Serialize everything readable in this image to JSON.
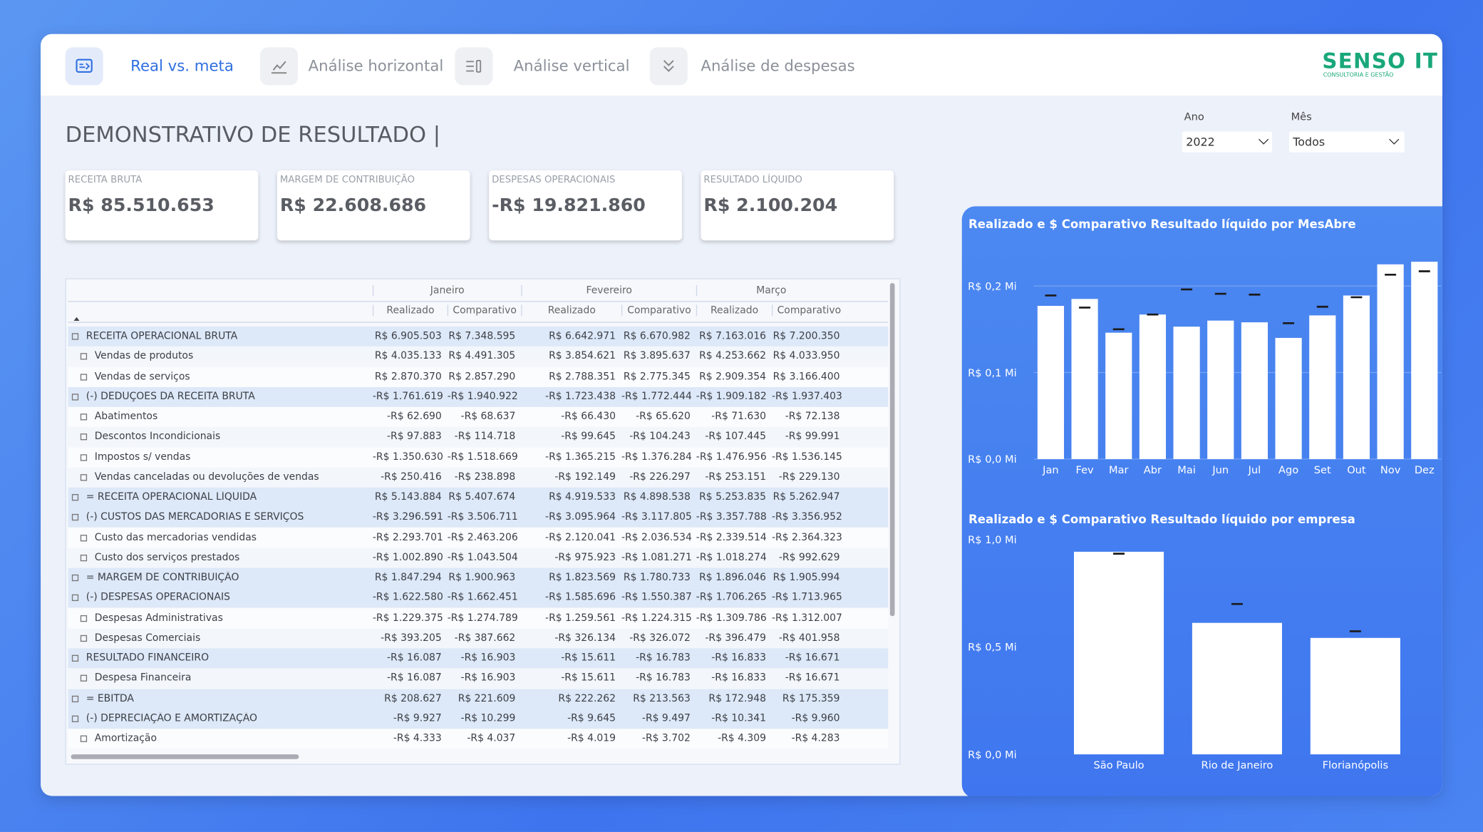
{
  "nav": {
    "tabs": [
      "Real vs. meta",
      "Análise horizontal",
      "Análise vertical",
      "Análise de despesas"
    ]
  },
  "logo": {
    "name": "SENSO IT",
    "tagline": "CONSULTORIA E GESTÃO"
  },
  "title": "DEMONSTRATIVO DE RESULTADO |",
  "filters": [
    {
      "label": "Ano",
      "value": "2022"
    },
    {
      "label": "Mês",
      "value": "Todos"
    }
  ],
  "kpis": [
    {
      "label": "RECEITA BRUTA",
      "value": "R$ 85.510.653"
    },
    {
      "label": "MARGEM DE CONTRIBUIÇÃO",
      "value": "R$ 22.608.686"
    },
    {
      "label": "DESPESAS OPERACIONAIS",
      "value": "-R$ 19.821.860"
    },
    {
      "label": "RESULTADO LÍQUIDO",
      "value": "R$ 2.100.204"
    }
  ],
  "table": {
    "months": [
      "Janeiro",
      "Fevereiro",
      "Março"
    ],
    "columns": [
      "Realizado",
      "Comparativo"
    ],
    "rows": [
      {
        "label": "RECEITA OPERACIONAL BRUTA",
        "values": [
          "R$ 6.905.503",
          "R$ 7.348.595",
          "R$ 6.642.971",
          "R$ 6.670.982",
          "R$ 7.163.016",
          "R$ 7.200.350"
        ]
      },
      {
        "label": "Vendas de produtos",
        "values": [
          "R$ 4.035.133",
          "R$ 4.491.305",
          "R$ 3.854.621",
          "R$ 3.895.637",
          "R$ 4.253.662",
          "R$ 4.033.950"
        ]
      },
      {
        "label": "Vendas de serviços",
        "values": [
          "R$ 2.870.370",
          "R$ 2.857.290",
          "R$ 2.788.351",
          "R$ 2.775.345",
          "R$ 2.909.354",
          "R$ 3.166.400"
        ]
      },
      {
        "label": "(-) DEDUÇÕES DA RECEITA BRUTA",
        "values": [
          "-R$ 1.761.619",
          "-R$ 1.940.922",
          "-R$ 1.723.438",
          "-R$ 1.772.444",
          "-R$ 1.909.182",
          "-R$ 1.937.403"
        ]
      },
      {
        "label": "Abatimentos",
        "values": [
          "-R$ 62.690",
          "-R$ 68.637",
          "-R$ 66.430",
          "-R$ 65.620",
          "-R$ 71.630",
          "-R$ 72.138"
        ]
      },
      {
        "label": "Descontos Incondicionais",
        "values": [
          "-R$ 97.883",
          "-R$ 114.718",
          "-R$ 99.645",
          "-R$ 104.243",
          "-R$ 107.445",
          "-R$ 99.991"
        ]
      },
      {
        "label": "Impostos s/ vendas",
        "values": [
          "-R$ 1.350.630",
          "-R$ 1.518.669",
          "-R$ 1.365.215",
          "-R$ 1.376.284",
          "-R$ 1.476.956",
          "-R$ 1.536.145"
        ]
      },
      {
        "label": "Vendas canceladas ou devoluções de vendas",
        "values": [
          "-R$ 250.416",
          "-R$ 238.898",
          "-R$ 192.149",
          "-R$ 226.297",
          "-R$ 253.151",
          "-R$ 229.130"
        ]
      },
      {
        "label": "= RECEITA OPERACIONAL LÍQUIDA",
        "values": [
          "R$ 5.143.884",
          "R$ 5.407.674",
          "R$ 4.919.533",
          "R$ 4.898.538",
          "R$ 5.253.835",
          "R$ 5.262.947"
        ]
      },
      {
        "label": "(-) CUSTOS DAS MERCADORIAS E SERVIÇOS",
        "values": [
          "-R$ 3.296.591",
          "-R$ 3.506.711",
          "-R$ 3.095.964",
          "-R$ 3.117.805",
          "-R$ 3.357.788",
          "-R$ 3.356.952"
        ]
      },
      {
        "label": "Custo das mercadorias vendidas",
        "values": [
          "-R$ 2.293.701",
          "-R$ 2.463.206",
          "-R$ 2.120.041",
          "-R$ 2.036.534",
          "-R$ 2.339.514",
          "-R$ 2.364.323"
        ]
      },
      {
        "label": "Custo dos serviços prestados",
        "values": [
          "-R$ 1.002.890",
          "-R$ 1.043.504",
          "-R$ 975.923",
          "-R$ 1.081.271",
          "-R$ 1.018.274",
          "-R$ 992.629"
        ]
      },
      {
        "label": "= MARGEM DE CONTRIBUIÇÃO",
        "values": [
          "R$ 1.847.294",
          "R$ 1.900.963",
          "R$ 1.823.569",
          "R$ 1.780.733",
          "R$ 1.896.046",
          "R$ 1.905.994"
        ]
      },
      {
        "label": "(-) DESPESAS OPERACIONAIS",
        "values": [
          "-R$ 1.622.580",
          "-R$ 1.662.451",
          "-R$ 1.585.696",
          "-R$ 1.550.387",
          "-R$ 1.706.265",
          "-R$ 1.713.965"
        ]
      },
      {
        "label": "Despesas Administrativas",
        "values": [
          "-R$ 1.229.375",
          "-R$ 1.274.789",
          "-R$ 1.259.561",
          "-R$ 1.224.315",
          "-R$ 1.309.786",
          "-R$ 1.312.007"
        ]
      },
      {
        "label": "Despesas Comerciais",
        "values": [
          "-R$ 393.205",
          "-R$ 387.662",
          "-R$ 326.134",
          "-R$ 326.072",
          "-R$ 396.479",
          "-R$ 401.958"
        ]
      },
      {
        "label": "RESULTADO FINANCEIRO",
        "values": [
          "-R$ 16.087",
          "-R$ 16.903",
          "-R$ 15.611",
          "-R$ 16.783",
          "-R$ 16.833",
          "-R$ 16.671"
        ]
      },
      {
        "label": "Despesa Financeira",
        "values": [
          "-R$ 16.087",
          "-R$ 16.903",
          "-R$ 15.611",
          "-R$ 16.783",
          "-R$ 16.833",
          "-R$ 16.671"
        ]
      },
      {
        "label": "= EBITDA",
        "values": [
          "R$ 208.627",
          "R$ 221.609",
          "R$ 222.262",
          "R$ 213.563",
          "R$ 172.948",
          "R$ 175.359"
        ]
      },
      {
        "label": "(-) DEPRECIAÇÃO E AMORTIZAÇÃO",
        "values": [
          "-R$ 9.927",
          "-R$ 10.299",
          "-R$ 9.645",
          "-R$ 9.497",
          "-R$ 10.341",
          "-R$ 9.960"
        ]
      },
      {
        "label": "Amortização",
        "values": [
          "-R$ 4.333",
          "-R$ 4.037",
          "-R$ 4.019",
          "-R$ 3.702",
          "-R$ 4.309",
          "-R$ 4.283"
        ]
      }
    ]
  },
  "charts": [
    {
      "type": "bar",
      "title": "Realizado e $ Comparativo Resultado líquido por MesAbre",
      "categories": [
        "Jan",
        "Fev",
        "Mar",
        "Abr",
        "Mai",
        "Jun",
        "Jul",
        "Ago",
        "Set",
        "Out",
        "Nov",
        "Dez"
      ],
      "values": [
        0.177,
        0.185,
        0.146,
        0.167,
        0.153,
        0.16,
        0.158,
        0.14,
        0.166,
        0.189,
        0.225,
        0.228
      ],
      "targets": [
        0.189,
        0.175,
        0.15,
        0.167,
        0.196,
        0.191,
        0.19,
        0.157,
        0.176,
        0.187,
        0.213,
        0.217
      ],
      "color": "#ffffff",
      "target_color": "#1a1a1a",
      "grid": true,
      "ylim": [
        0,
        0.245
      ],
      "yticks": [
        {
          "value": 0,
          "label": "R$ 0,0 Mi"
        },
        {
          "value": 0.1,
          "label": "R$ 0,1 Mi"
        },
        {
          "value": 0.2,
          "label": "R$ 0,2 Mi"
        }
      ]
    },
    {
      "type": "bar",
      "title": "Realizado e $ Comparativo Resultado líquido por empresa",
      "categories": [
        "São Paulo",
        "Rio de Janeiro",
        "Florianópolis"
      ],
      "values": [
        0.943,
        0.612,
        0.542
      ],
      "targets": [
        0.934,
        0.7,
        0.573
      ],
      "color": "#ffffff",
      "target_color": "#1a1a1a",
      "grid": false,
      "ylim": [
        0,
        1.0
      ],
      "yticks": [
        {
          "value": 0,
          "label": "R$ 0,0 Mi"
        },
        {
          "value": 0.5,
          "label": "R$ 0,5 Mi"
        },
        {
          "value": 1.0,
          "label": "R$ 1,0 Mi"
        }
      ]
    }
  ]
}
